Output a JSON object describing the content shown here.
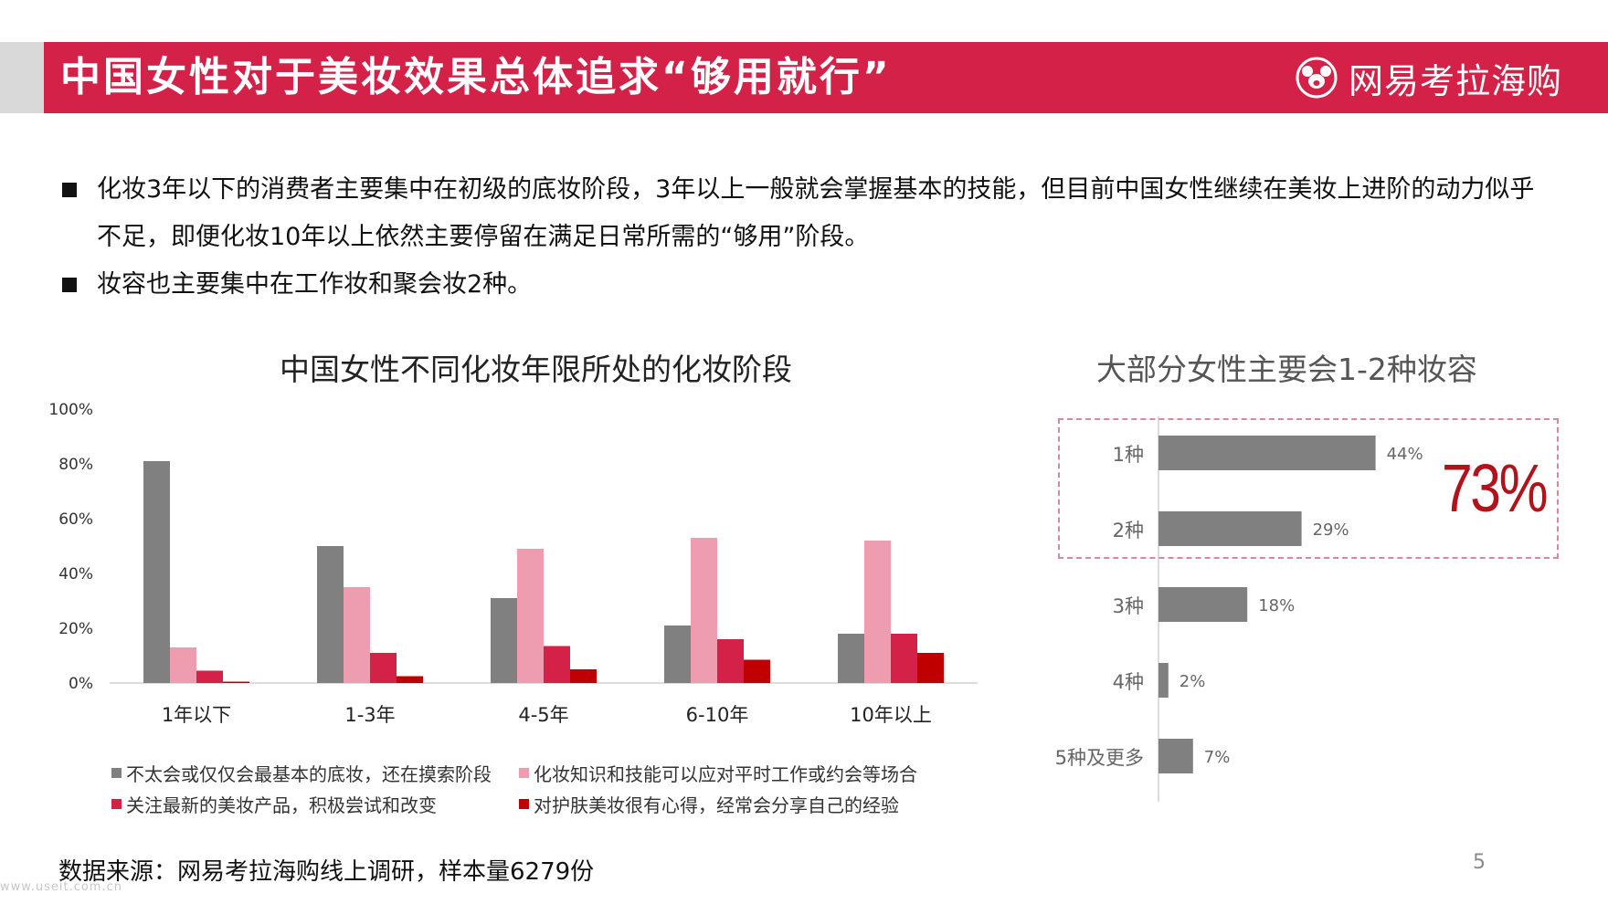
{
  "header": {
    "title": "中国女性对于美妆效果总体追求“够用就行”",
    "brand": "网易考拉海购",
    "color": "#d32147"
  },
  "bullets": [
    {
      "text": "化妆3年以下的消费者主要集中在初级的底妆阶段，3年以上一般就会掌握基本的技能，但目前中国女性继续在美妆上进阶的动力似乎不足，即便化妆10年以上依然主要停留在满足日常所需的“够用”阶段。"
    },
    {
      "text": "妆容也主要集中在工作妆和聚会妆2种。"
    }
  ],
  "chart_data": [
    {
      "type": "bar",
      "title": "中国女性不同化妆年限所处的化妆阶段",
      "categories": [
        "1年以下",
        "1-3年",
        "4-5年",
        "6-10年",
        "10年以上"
      ],
      "series": [
        {
          "name": "不太会或仅仅会最基本的底妆，还在摸索阶段",
          "color": "#808080",
          "values": [
            81,
            50,
            31,
            21,
            18
          ]
        },
        {
          "name": "化妆知识和技能可以应对平时工作或约会等场合",
          "color": "#ee9cb0",
          "values": [
            13,
            35,
            49,
            53,
            52
          ]
        },
        {
          "name": "关注最新的美妆产品，积极尝试和改变",
          "color": "#d32147",
          "values": [
            4.5,
            11,
            13.5,
            16,
            18
          ]
        },
        {
          "name": "对护肤美妆很有心得，经常会分享自己的经验",
          "color": "#c00000",
          "values": [
            0.5,
            2.5,
            5,
            8.5,
            11
          ]
        }
      ],
      "ylim": [
        0,
        100
      ],
      "yticks": [
        "0%",
        "20%",
        "40%",
        "60%",
        "80%",
        "100%"
      ],
      "xlabel": "",
      "ylabel": ""
    },
    {
      "type": "bar",
      "orientation": "horizontal",
      "title": "大部分女性主要会1-2种妆容",
      "categories": [
        "1种",
        "2种",
        "3种",
        "4种",
        "5种及更多"
      ],
      "values": [
        44,
        29,
        18,
        2,
        7
      ],
      "labels": [
        "44%",
        "29%",
        "18%",
        "2%",
        "7%"
      ],
      "color": "#808080",
      "xlim": [
        0,
        50
      ],
      "annotation": "73%"
    }
  ],
  "source": "数据来源：网易考拉海购线上调研，样本量6279份",
  "page_number": "5",
  "watermark": "www.useit.com.cn"
}
